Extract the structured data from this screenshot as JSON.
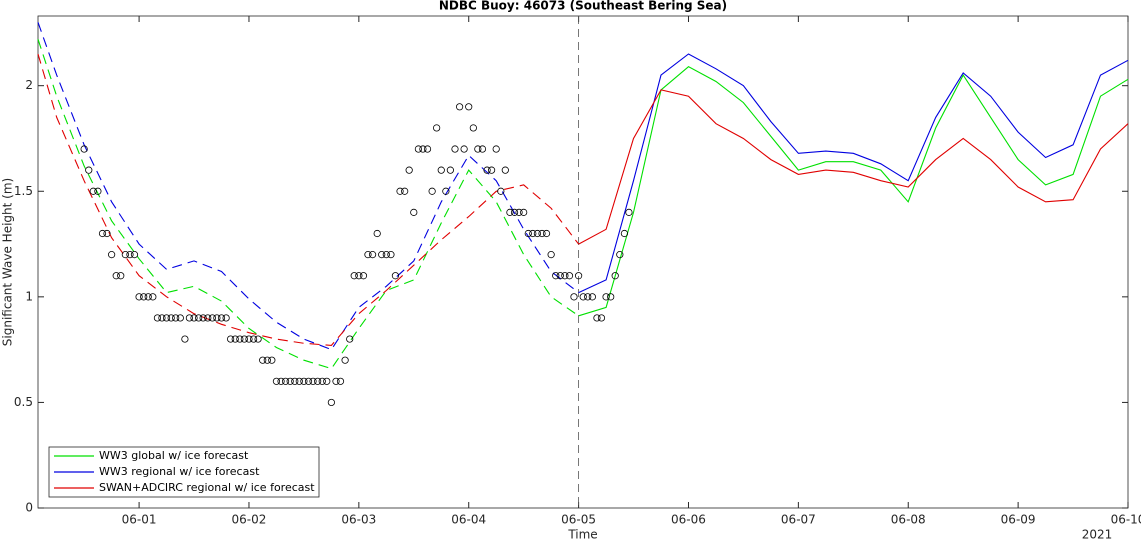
{
  "chart_data": {
    "type": "line",
    "title": "NDBC Buoy: 46073 (Southeast Bering Sea)",
    "x_label": "Time",
    "y_label": "Significant Wave Height (m)",
    "x_annotation": "2021",
    "xlim": [
      0.08,
      10
    ],
    "ylim": [
      0,
      2.33
    ],
    "xticks": [
      {
        "value": 1,
        "label": "06-01"
      },
      {
        "value": 2,
        "label": "06-02"
      },
      {
        "value": 3,
        "label": "06-03"
      },
      {
        "value": 4,
        "label": "06-04"
      },
      {
        "value": 5,
        "label": "06-05"
      },
      {
        "value": 6,
        "label": "06-06"
      },
      {
        "value": 7,
        "label": "06-07"
      },
      {
        "value": 8,
        "label": "06-08"
      },
      {
        "value": 9,
        "label": "06-09"
      },
      {
        "value": 10,
        "label": "06-10"
      }
    ],
    "yticks": [
      0,
      0.5,
      1,
      1.5,
      2
    ],
    "forecast_start": 5,
    "legend": "lower left",
    "x": [
      0.08,
      0.25,
      0.5,
      0.75,
      1,
      1.25,
      1.5,
      1.75,
      2,
      2.25,
      2.5,
      2.75,
      3,
      3.25,
      3.5,
      3.75,
      4,
      4.25,
      4.5,
      4.75,
      5,
      5.25,
      5.5,
      5.75,
      6,
      6.25,
      6.5,
      6.75,
      7,
      7.25,
      7.5,
      7.75,
      8,
      8.25,
      8.5,
      8.75,
      9,
      9.25,
      9.5,
      9.75,
      10
    ],
    "series": [
      {
        "name": "WW3 global w/ ice forecast",
        "color": "#00e000",
        "values": [
          2.22,
          1.95,
          1.62,
          1.36,
          1.18,
          1.02,
          1.05,
          0.98,
          0.85,
          0.76,
          0.7,
          0.66,
          0.85,
          1.03,
          1.08,
          1.35,
          1.6,
          1.45,
          1.2,
          1.0,
          0.91,
          0.95,
          1.4,
          1.98,
          2.09,
          2.02,
          1.92,
          1.76,
          1.6,
          1.64,
          1.64,
          1.6,
          1.45,
          1.8,
          2.05,
          1.85,
          1.65,
          1.53,
          1.58,
          1.95,
          2.03
        ]
      },
      {
        "name": "WW3 regional w/ ice forecast",
        "color": "#0000e0",
        "values": [
          2.3,
          2.05,
          1.72,
          1.45,
          1.25,
          1.13,
          1.17,
          1.12,
          0.99,
          0.88,
          0.8,
          0.75,
          0.95,
          1.05,
          1.17,
          1.45,
          1.67,
          1.55,
          1.32,
          1.12,
          1.02,
          1.08,
          1.55,
          2.05,
          2.15,
          2.08,
          2.0,
          1.83,
          1.68,
          1.69,
          1.68,
          1.63,
          1.55,
          1.85,
          2.06,
          1.95,
          1.78,
          1.66,
          1.72,
          2.05,
          2.12
        ]
      },
      {
        "name": "SWAN+ADCIRC regional w/ ice forecast",
        "color": "#e00000",
        "values": [
          2.15,
          1.85,
          1.55,
          1.28,
          1.1,
          1.0,
          0.92,
          0.87,
          0.83,
          0.8,
          0.78,
          0.77,
          0.92,
          1.03,
          1.15,
          1.27,
          1.38,
          1.5,
          1.53,
          1.42,
          1.25,
          1.32,
          1.75,
          1.98,
          1.95,
          1.82,
          1.75,
          1.65,
          1.58,
          1.6,
          1.59,
          1.55,
          1.52,
          1.65,
          1.75,
          1.65,
          1.52,
          1.45,
          1.46,
          1.7,
          1.82
        ]
      }
    ],
    "observations": {
      "color": "#000000",
      "x": [
        0.5,
        0.542,
        0.583,
        0.625,
        0.667,
        0.708,
        0.75,
        0.792,
        0.833,
        0.875,
        0.917,
        0.958,
        1.0,
        1.042,
        1.083,
        1.125,
        1.167,
        1.208,
        1.25,
        1.292,
        1.333,
        1.375,
        1.417,
        1.458,
        1.5,
        1.542,
        1.583,
        1.625,
        1.667,
        1.708,
        1.75,
        1.792,
        1.833,
        1.875,
        1.917,
        1.958,
        2.0,
        2.042,
        2.083,
        2.125,
        2.167,
        2.208,
        2.25,
        2.292,
        2.333,
        2.375,
        2.417,
        2.458,
        2.5,
        2.542,
        2.583,
        2.625,
        2.667,
        2.708,
        2.75,
        2.792,
        2.833,
        2.875,
        2.917,
        2.958,
        3.0,
        3.042,
        3.083,
        3.125,
        3.167,
        3.208,
        3.25,
        3.292,
        3.333,
        3.375,
        3.417,
        3.458,
        3.5,
        3.542,
        3.583,
        3.625,
        3.667,
        3.708,
        3.75,
        3.792,
        3.833,
        3.875,
        3.917,
        3.958,
        4.0,
        4.042,
        4.083,
        4.125,
        4.167,
        4.208,
        4.25,
        4.292,
        4.333,
        4.375,
        4.417,
        4.458,
        4.5,
        4.542,
        4.583,
        4.625,
        4.667,
        4.708,
        4.75,
        4.792,
        4.833,
        4.875,
        4.917,
        4.958,
        5.0,
        5.042,
        5.083,
        5.125,
        5.167,
        5.208,
        5.25,
        5.292,
        5.333,
        5.375,
        5.417,
        5.458
      ],
      "values": [
        1.7,
        1.6,
        1.5,
        1.5,
        1.3,
        1.3,
        1.2,
        1.1,
        1.1,
        1.2,
        1.2,
        1.2,
        1.0,
        1.0,
        1.0,
        1.0,
        0.9,
        0.9,
        0.9,
        0.9,
        0.9,
        0.9,
        0.8,
        0.9,
        0.9,
        0.9,
        0.9,
        0.9,
        0.9,
        0.9,
        0.9,
        0.9,
        0.8,
        0.8,
        0.8,
        0.8,
        0.8,
        0.8,
        0.8,
        0.7,
        0.7,
        0.7,
        0.6,
        0.6,
        0.6,
        0.6,
        0.6,
        0.6,
        0.6,
        0.6,
        0.6,
        0.6,
        0.6,
        0.6,
        0.5,
        0.6,
        0.6,
        0.7,
        0.8,
        1.1,
        1.1,
        1.1,
        1.2,
        1.2,
        1.3,
        1.2,
        1.2,
        1.2,
        1.1,
        1.5,
        1.5,
        1.6,
        1.4,
        1.7,
        1.7,
        1.7,
        1.5,
        1.8,
        1.6,
        1.5,
        1.6,
        1.7,
        1.9,
        1.7,
        1.9,
        1.8,
        1.7,
        1.7,
        1.6,
        1.6,
        1.7,
        1.5,
        1.6,
        1.4,
        1.4,
        1.4,
        1.4,
        1.3,
        1.3,
        1.3,
        1.3,
        1.3,
        1.2,
        1.1,
        1.1,
        1.1,
        1.1,
        1.0,
        1.1,
        1.0,
        1.0,
        1.0,
        0.9,
        0.9,
        1.0,
        1.0,
        1.1,
        1.2,
        1.3,
        1.4
      ]
    }
  }
}
